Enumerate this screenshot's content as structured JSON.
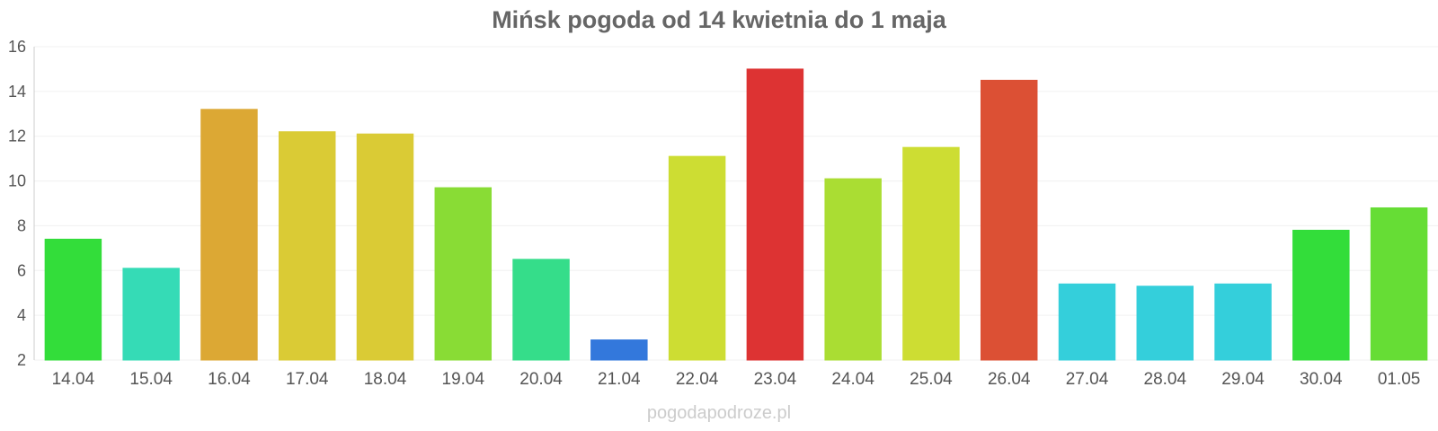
{
  "chart_data": {
    "type": "bar",
    "title": "Mińsk pogoda od 14 kwietnia do 1 maja",
    "xlabel": "",
    "ylabel": "",
    "ylim": [
      2,
      16
    ],
    "y_ticks": [
      "2",
      "4",
      "6",
      "8",
      "10",
      "12",
      "14",
      "16"
    ],
    "grid": true,
    "categories": [
      "14.04",
      "15.04",
      "16.04",
      "17.04",
      "18.04",
      "19.04",
      "20.04",
      "21.04",
      "22.04",
      "23.04",
      "24.04",
      "25.04",
      "26.04",
      "27.04",
      "28.04",
      "29.04",
      "30.04",
      "01.05"
    ],
    "values": [
      7.4,
      6.1,
      13.2,
      12.2,
      12.1,
      9.7,
      6.5,
      2.9,
      11.1,
      15.0,
      10.1,
      11.5,
      14.5,
      5.4,
      5.3,
      5.4,
      7.8,
      8.8
    ],
    "colors": [
      "#33dd3a",
      "#35dbb6",
      "#dca834",
      "#dacb35",
      "#dacb35",
      "#89dc35",
      "#35dd8a",
      "#3378dc",
      "#cddd33",
      "#dd3333",
      "#aadd33",
      "#cddd33",
      "#dc5034",
      "#34cfdb",
      "#34cfdb",
      "#34cfdb",
      "#33dd3a",
      "#66dd35"
    ]
  },
  "footer": {
    "watermark": "pogodapodroze.pl"
  }
}
